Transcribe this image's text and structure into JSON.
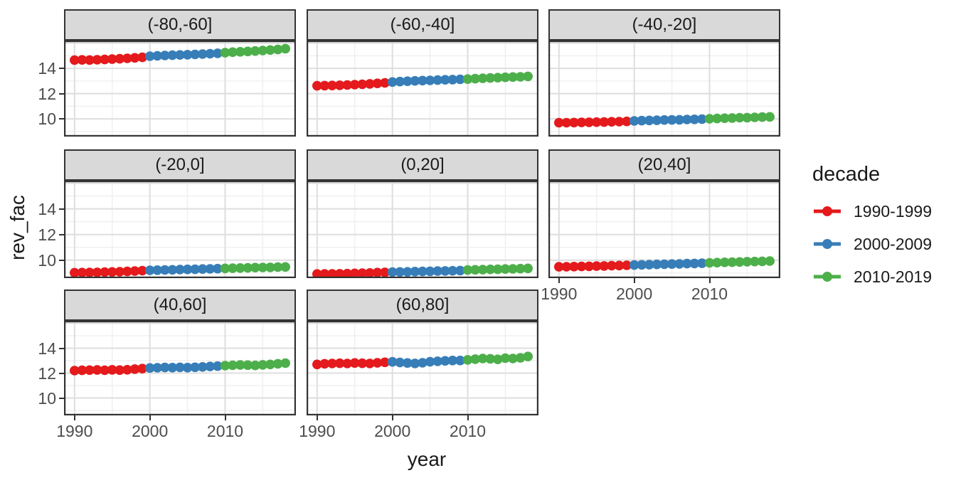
{
  "chart_data": {
    "type": "scatter",
    "xlabel": "year",
    "ylabel": "rev_fac",
    "xlim": [
      1988.6,
      2019.4
    ],
    "ylim": [
      8.6,
      16.2
    ],
    "grid": "major+minor",
    "legend_position": "right",
    "x": [
      1990,
      1991,
      1992,
      1993,
      1994,
      1995,
      1996,
      1997,
      1998,
      1999,
      2000,
      2001,
      2002,
      2003,
      2004,
      2005,
      2006,
      2007,
      2008,
      2009,
      2010,
      2011,
      2012,
      2013,
      2014,
      2015,
      2016,
      2017,
      2018
    ],
    "x_ticks": {
      "values": [
        1990,
        2000,
        2010
      ],
      "labels": [
        "1990",
        "2000",
        "2010"
      ]
    },
    "y_ticks": {
      "values": [
        10,
        12,
        14
      ],
      "labels": [
        "10",
        "12",
        "14"
      ]
    },
    "x_minor_gridlines": [
      1995,
      2005,
      2015
    ],
    "y_major_gridlines": [
      10,
      12,
      14,
      16
    ],
    "y_minor_gridlines": [
      9,
      11,
      13,
      15
    ],
    "facets": [
      {
        "label": "(-80,-60]",
        "values": [
          14.65,
          14.67,
          14.66,
          14.68,
          14.7,
          14.73,
          14.76,
          14.79,
          14.83,
          14.87,
          14.96,
          14.99,
          15.02,
          15.04,
          15.06,
          15.08,
          15.1,
          15.13,
          15.16,
          15.19,
          15.24,
          15.28,
          15.31,
          15.34,
          15.37,
          15.41,
          15.45,
          15.49,
          15.55
        ]
      },
      {
        "label": "(-60,-40]",
        "values": [
          12.62,
          12.63,
          12.64,
          12.66,
          12.68,
          12.71,
          12.74,
          12.77,
          12.81,
          12.85,
          12.92,
          12.95,
          12.98,
          13.01,
          13.03,
          13.05,
          13.07,
          13.09,
          13.11,
          13.13,
          13.15,
          13.18,
          13.21,
          13.24,
          13.26,
          13.29,
          13.31,
          13.33,
          13.36
        ]
      },
      {
        "label": "(-40,-20]",
        "values": [
          9.7,
          9.7,
          9.71,
          9.72,
          9.73,
          9.74,
          9.75,
          9.77,
          9.78,
          9.8,
          9.84,
          9.86,
          9.88,
          9.89,
          9.91,
          9.92,
          9.93,
          9.95,
          9.96,
          9.98,
          10.01,
          10.03,
          10.05,
          10.07,
          10.09,
          10.1,
          10.12,
          10.14,
          10.16
        ]
      },
      {
        "label": "(-20,0]",
        "values": [
          9.02,
          9.03,
          9.04,
          9.05,
          9.07,
          9.08,
          9.1,
          9.12,
          9.15,
          9.18,
          9.21,
          9.22,
          9.24,
          9.25,
          9.27,
          9.28,
          9.29,
          9.31,
          9.32,
          9.34,
          9.36,
          9.37,
          9.39,
          9.4,
          9.42,
          9.43,
          9.44,
          9.46,
          9.47
        ]
      },
      {
        "label": "(0,20]",
        "values": [
          8.92,
          8.93,
          8.93,
          8.94,
          8.95,
          8.97,
          8.98,
          9.0,
          9.03,
          9.05,
          9.07,
          9.08,
          9.09,
          9.11,
          9.12,
          9.13,
          9.15,
          9.16,
          9.17,
          9.19,
          9.23,
          9.25,
          9.26,
          9.28,
          9.29,
          9.31,
          9.32,
          9.34,
          9.36
        ]
      },
      {
        "label": "(20,40]",
        "values": [
          9.48,
          9.49,
          9.5,
          9.51,
          9.52,
          9.54,
          9.55,
          9.57,
          9.58,
          9.6,
          9.62,
          9.64,
          9.65,
          9.67,
          9.68,
          9.7,
          9.71,
          9.73,
          9.74,
          9.76,
          9.79,
          9.81,
          9.83,
          9.84,
          9.86,
          9.88,
          9.89,
          9.91,
          9.93
        ]
      },
      {
        "label": "(40,60]",
        "values": [
          12.2,
          12.22,
          12.24,
          12.25,
          12.23,
          12.26,
          12.24,
          12.27,
          12.32,
          12.36,
          12.41,
          12.43,
          12.45,
          12.44,
          12.46,
          12.44,
          12.47,
          12.5,
          12.53,
          12.56,
          12.6,
          12.63,
          12.65,
          12.64,
          12.62,
          12.66,
          12.7,
          12.75,
          12.8
        ]
      },
      {
        "label": "(60,80]",
        "values": [
          12.7,
          12.75,
          12.77,
          12.79,
          12.77,
          12.81,
          12.79,
          12.77,
          12.82,
          12.87,
          12.9,
          12.85,
          12.81,
          12.78,
          12.83,
          12.91,
          12.95,
          12.98,
          13.01,
          13.01,
          13.06,
          13.12,
          13.17,
          13.15,
          13.1,
          13.2,
          13.17,
          13.22,
          13.33
        ]
      }
    ],
    "legend": {
      "title": "decade",
      "items": [
        {
          "label": "1990-1999",
          "color": "#E41A1C",
          "years": [
            1990,
            1999
          ]
        },
        {
          "label": "2000-2009",
          "color": "#377EB8",
          "years": [
            2000,
            2009
          ]
        },
        {
          "label": "2010-2019",
          "color": "#4DAF4A",
          "years": [
            2010,
            2019
          ]
        }
      ]
    },
    "style_colors": {
      "strip_background": "#d9d9d9",
      "panel_border": "#333333",
      "major_grid": "#dedede",
      "minor_grid": "#f0f0f0",
      "tick_text": "#4d4d4d"
    }
  }
}
